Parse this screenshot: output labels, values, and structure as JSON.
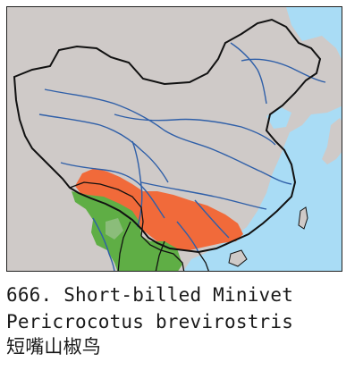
{
  "species": {
    "number": "666.",
    "common_name": "Short-billed Minivet",
    "scientific_name": "Pericrocotus brevirostris",
    "chinese_name": "短嘴山椒鸟"
  },
  "map": {
    "colors": {
      "sea": "#a9dcf5",
      "land": "#cfcac8",
      "china_outline": "#111111",
      "rivers": "#2f5fa8",
      "breeding_range": "#f16a3a",
      "resident_range": "#5fae45"
    },
    "legend": []
  }
}
